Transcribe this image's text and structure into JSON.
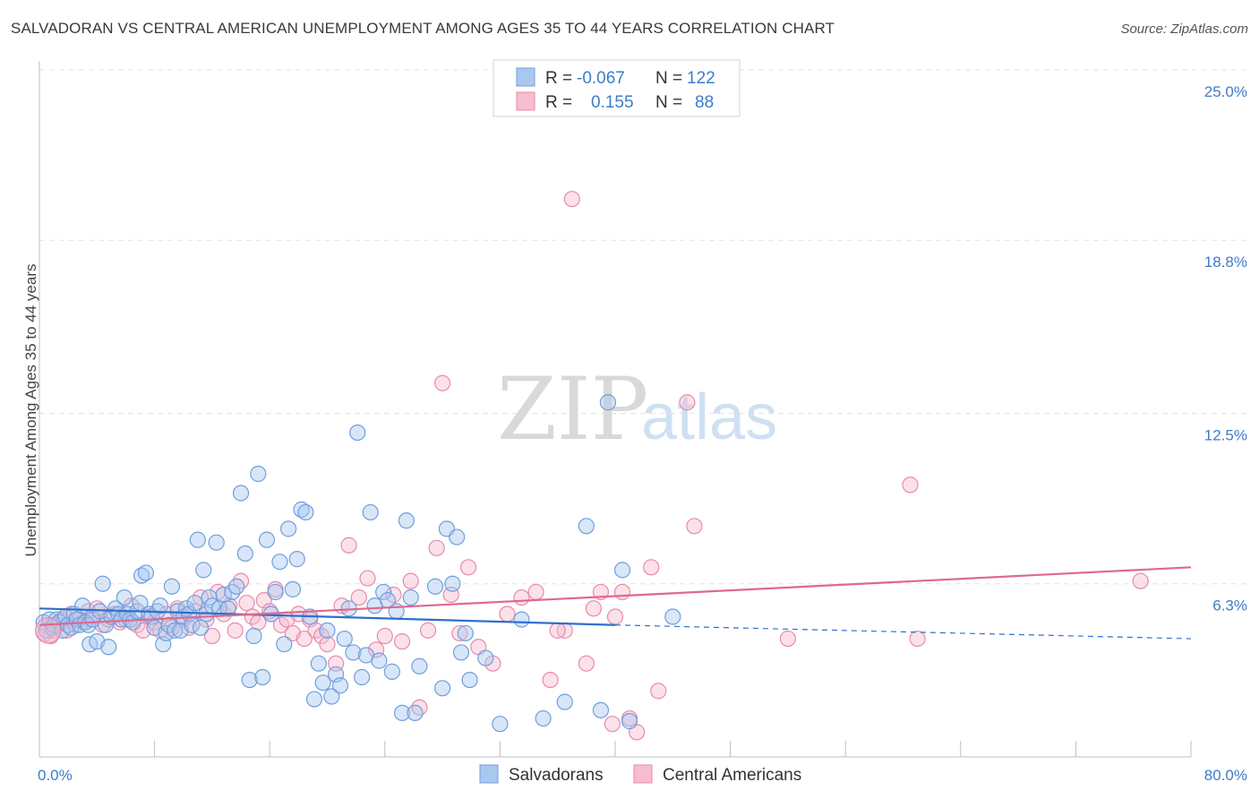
{
  "title": "SALVADORAN VS CENTRAL AMERICAN UNEMPLOYMENT AMONG AGES 35 TO 44 YEARS CORRELATION CHART",
  "source": "Source: ZipAtlas.com",
  "watermark": {
    "zip": "ZIP",
    "atlas": "atlas"
  },
  "colors": {
    "blue_fill": "#a9c8ef",
    "blue_stroke": "#6f9fdc",
    "blue_line": "#2f6fcb",
    "pink_fill": "#f6bcd0",
    "pink_stroke": "#e88aaa",
    "pink_line": "#e0688f",
    "grid": "#e3e3e3",
    "tick_text": "#3d7cc9"
  },
  "legend": {
    "row1": {
      "r_label": "R =",
      "r_value": "-0.067",
      "n_label": "N =",
      "n_value": "122"
    },
    "row2": {
      "r_label": "R =",
      "r_value": "0.155",
      "n_label": "N =",
      "n_value": "88"
    }
  },
  "chart_data": {
    "type": "scatter",
    "title": "SALVADORAN VS CENTRAL AMERICAN UNEMPLOYMENT AMONG AGES 35 TO 44 YEARS CORRELATION CHART",
    "xlabel": "",
    "ylabel": "Unemployment Among Ages 35 to 44 years",
    "xlim": [
      0,
      80
    ],
    "ylim": [
      0,
      25
    ],
    "x_tick_labels": [
      "0.0%",
      "80.0%"
    ],
    "y_ticks": [
      6.3,
      12.5,
      18.8,
      25.0
    ],
    "y_tick_labels": [
      "6.3%",
      "12.5%",
      "18.8%",
      "25.0%"
    ],
    "grid": true,
    "legend_position": "top-center",
    "series": [
      {
        "name": "Salvadorans",
        "r": -0.067,
        "n": 122,
        "trend": {
          "x0": 0,
          "y0": 5.4,
          "x1": 40,
          "y1": 4.8,
          "dashed_to_x": 80,
          "dashed_to_y": 4.3
        },
        "points": [
          [
            0.3,
            4.9
          ],
          [
            0.5,
            4.6
          ],
          [
            0.7,
            5.0
          ],
          [
            0.9,
            4.7
          ],
          [
            1.0,
            4.8
          ],
          [
            1.2,
            5.0
          ],
          [
            1.4,
            4.9
          ],
          [
            1.6,
            4.6
          ],
          [
            1.8,
            5.1
          ],
          [
            2.0,
            4.8
          ],
          [
            2.2,
            4.7
          ],
          [
            2.4,
            5.2
          ],
          [
            2.6,
            5.0
          ],
          [
            2.8,
            4.8
          ],
          [
            3.0,
            5.5
          ],
          [
            3.2,
            4.9
          ],
          [
            3.4,
            4.8
          ],
          [
            3.5,
            4.1
          ],
          [
            3.7,
            5.0
          ],
          [
            4.0,
            4.2
          ],
          [
            4.2,
            5.3
          ],
          [
            4.4,
            6.3
          ],
          [
            4.6,
            4.8
          ],
          [
            4.8,
            4.0
          ],
          [
            5.0,
            5.1
          ],
          [
            5.3,
            5.4
          ],
          [
            5.5,
            5.2
          ],
          [
            5.7,
            5.0
          ],
          [
            5.9,
            5.8
          ],
          [
            6.1,
            5.2
          ],
          [
            6.3,
            5.0
          ],
          [
            6.5,
            4.9
          ],
          [
            6.8,
            5.3
          ],
          [
            7.0,
            5.6
          ],
          [
            7.1,
            6.6
          ],
          [
            7.4,
            6.7
          ],
          [
            7.6,
            5.2
          ],
          [
            7.8,
            5.1
          ],
          [
            8.0,
            4.7
          ],
          [
            8.2,
            5.3
          ],
          [
            8.4,
            5.5
          ],
          [
            8.6,
            4.1
          ],
          [
            8.8,
            4.5
          ],
          [
            9.0,
            4.8
          ],
          [
            9.2,
            6.2
          ],
          [
            9.4,
            4.6
          ],
          [
            9.6,
            5.3
          ],
          [
            9.8,
            4.6
          ],
          [
            10.0,
            5.1
          ],
          [
            10.2,
            5.4
          ],
          [
            10.4,
            5.2
          ],
          [
            10.6,
            4.8
          ],
          [
            10.8,
            5.6
          ],
          [
            11.0,
            7.9
          ],
          [
            11.2,
            4.7
          ],
          [
            11.4,
            6.8
          ],
          [
            11.6,
            5.2
          ],
          [
            11.8,
            5.8
          ],
          [
            12.0,
            5.5
          ],
          [
            12.3,
            7.8
          ],
          [
            12.5,
            5.4
          ],
          [
            12.8,
            5.9
          ],
          [
            13.1,
            5.4
          ],
          [
            13.4,
            6.0
          ],
          [
            13.7,
            6.2
          ],
          [
            14.0,
            9.6
          ],
          [
            14.3,
            7.4
          ],
          [
            14.6,
            2.8
          ],
          [
            14.9,
            4.4
          ],
          [
            15.2,
            10.3
          ],
          [
            15.5,
            2.9
          ],
          [
            15.8,
            7.9
          ],
          [
            16.1,
            5.2
          ],
          [
            16.4,
            6.0
          ],
          [
            16.7,
            7.1
          ],
          [
            17.0,
            4.1
          ],
          [
            17.3,
            8.3
          ],
          [
            17.6,
            6.1
          ],
          [
            17.9,
            7.2
          ],
          [
            18.2,
            9.0
          ],
          [
            18.5,
            8.9
          ],
          [
            18.8,
            5.1
          ],
          [
            19.1,
            2.1
          ],
          [
            19.4,
            3.4
          ],
          [
            19.7,
            2.7
          ],
          [
            20.0,
            4.6
          ],
          [
            20.3,
            2.2
          ],
          [
            20.6,
            3.0
          ],
          [
            20.9,
            2.6
          ],
          [
            21.2,
            4.3
          ],
          [
            21.5,
            5.4
          ],
          [
            21.8,
            3.8
          ],
          [
            22.1,
            11.8
          ],
          [
            22.4,
            2.9
          ],
          [
            22.7,
            3.7
          ],
          [
            23.0,
            8.9
          ],
          [
            23.3,
            5.5
          ],
          [
            23.6,
            3.5
          ],
          [
            23.9,
            6.0
          ],
          [
            24.2,
            5.7
          ],
          [
            24.5,
            3.1
          ],
          [
            24.8,
            5.3
          ],
          [
            25.2,
            1.6
          ],
          [
            25.5,
            8.6
          ],
          [
            25.8,
            5.8
          ],
          [
            26.1,
            1.6
          ],
          [
            26.4,
            3.3
          ],
          [
            27.5,
            6.2
          ],
          [
            28.0,
            2.5
          ],
          [
            28.3,
            8.3
          ],
          [
            28.7,
            6.3
          ],
          [
            29.0,
            8.0
          ],
          [
            29.3,
            3.8
          ],
          [
            29.6,
            4.5
          ],
          [
            29.9,
            2.8
          ],
          [
            31.0,
            3.6
          ],
          [
            32.0,
            1.2
          ],
          [
            33.5,
            5.0
          ],
          [
            35.0,
            1.4
          ],
          [
            36.5,
            2.0
          ],
          [
            38.0,
            8.4
          ],
          [
            39.0,
            1.7
          ],
          [
            39.5,
            12.9
          ],
          [
            40.5,
            6.8
          ],
          [
            41.0,
            1.3
          ]
        ]
      },
      {
        "name": "Central Americans",
        "r": 0.155,
        "n": 88,
        "trend": {
          "x0": 0,
          "y0": 4.8,
          "x1": 80,
          "y1": 6.9
        },
        "points": [
          [
            0.4,
            4.5
          ],
          [
            0.6,
            4.7
          ],
          [
            0.8,
            4.4
          ],
          [
            1.0,
            4.6
          ],
          [
            1.3,
            4.8
          ],
          [
            1.6,
            5.0
          ],
          [
            1.9,
            4.6
          ],
          [
            2.2,
            5.2
          ],
          [
            2.5,
            4.8
          ],
          [
            2.8,
            5.0
          ],
          [
            3.1,
            4.9
          ],
          [
            3.4,
            5.3
          ],
          [
            3.7,
            5.1
          ],
          [
            4.0,
            5.4
          ],
          [
            4.4,
            4.8
          ],
          [
            4.8,
            5.0
          ],
          [
            5.2,
            5.2
          ],
          [
            5.6,
            4.9
          ],
          [
            6.0,
            5.0
          ],
          [
            6.4,
            5.5
          ],
          [
            6.8,
            4.8
          ],
          [
            7.2,
            4.6
          ],
          [
            7.6,
            5.1
          ],
          [
            8.0,
            4.9
          ],
          [
            8.4,
            4.6
          ],
          [
            8.8,
            5.2
          ],
          [
            9.2,
            4.7
          ],
          [
            9.6,
            5.4
          ],
          [
            10.0,
            5.0
          ],
          [
            10.4,
            4.7
          ],
          [
            10.8,
            5.3
          ],
          [
            11.2,
            5.8
          ],
          [
            11.6,
            5.0
          ],
          [
            12.0,
            4.4
          ],
          [
            12.4,
            6.0
          ],
          [
            12.8,
            5.2
          ],
          [
            13.2,
            5.5
          ],
          [
            13.6,
            4.6
          ],
          [
            14.0,
            6.4
          ],
          [
            14.4,
            5.6
          ],
          [
            14.8,
            5.1
          ],
          [
            15.2,
            4.9
          ],
          [
            15.6,
            5.7
          ],
          [
            16.0,
            5.3
          ],
          [
            16.4,
            6.1
          ],
          [
            16.8,
            4.8
          ],
          [
            17.2,
            5.0
          ],
          [
            17.6,
            4.5
          ],
          [
            18.0,
            5.2
          ],
          [
            18.4,
            4.3
          ],
          [
            18.8,
            5.0
          ],
          [
            19.2,
            4.6
          ],
          [
            19.6,
            4.4
          ],
          [
            20.0,
            4.1
          ],
          [
            20.6,
            3.4
          ],
          [
            21.0,
            5.5
          ],
          [
            21.5,
            7.7
          ],
          [
            22.2,
            5.8
          ],
          [
            22.8,
            6.5
          ],
          [
            23.4,
            3.9
          ],
          [
            24.0,
            4.4
          ],
          [
            24.6,
            5.9
          ],
          [
            25.2,
            4.2
          ],
          [
            25.8,
            6.4
          ],
          [
            26.4,
            1.8
          ],
          [
            27.0,
            4.6
          ],
          [
            27.6,
            7.6
          ],
          [
            28.0,
            13.6
          ],
          [
            28.6,
            5.9
          ],
          [
            29.2,
            4.5
          ],
          [
            29.8,
            6.9
          ],
          [
            30.5,
            4.0
          ],
          [
            31.5,
            3.4
          ],
          [
            32.5,
            5.2
          ],
          [
            33.5,
            5.8
          ],
          [
            34.5,
            6.0
          ],
          [
            35.5,
            2.8
          ],
          [
            36.5,
            4.6
          ],
          [
            37.0,
            20.3
          ],
          [
            38.0,
            3.4
          ],
          [
            39.0,
            6.0
          ],
          [
            39.8,
            1.2
          ],
          [
            40.5,
            6.0
          ],
          [
            41.5,
            0.9
          ],
          [
            42.5,
            6.9
          ],
          [
            43.0,
            2.4
          ],
          [
            45.0,
            12.9
          ],
          [
            52.0,
            4.3
          ]
        ]
      }
    ],
    "extra_points": {
      "blue": [
        [
          44.0,
          5.1
        ]
      ],
      "pink": [
        [
          45.5,
          8.4
        ],
        [
          60.5,
          9.9
        ],
        [
          76.5,
          6.4
        ],
        [
          61.0,
          4.3
        ],
        [
          41.0,
          1.4
        ],
        [
          38.5,
          5.4
        ],
        [
          40.0,
          5.1
        ],
        [
          36.0,
          4.6
        ]
      ]
    }
  }
}
